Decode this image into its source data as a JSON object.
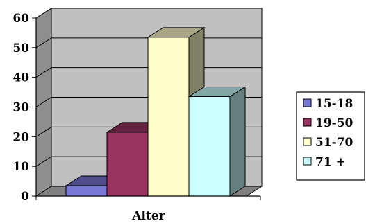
{
  "chart_data": {
    "type": "bar",
    "style": "3d-clustered-column",
    "xlabel": "Alter",
    "ylabel": "",
    "categories": [
      "Alter"
    ],
    "ylim": [
      0,
      60
    ],
    "yticks": [
      0,
      10,
      20,
      30,
      40,
      50,
      60
    ],
    "grid": true,
    "legend_position": "right",
    "series": [
      {
        "name": "15-18",
        "values": [
          3.5
        ],
        "color": "#7b79d8"
      },
      {
        "name": "19-50",
        "values": [
          21.5
        ],
        "color": "#99335f"
      },
      {
        "name": "51-70",
        "values": [
          53.5
        ],
        "color": "#ffffcc"
      },
      {
        "name": "71 +",
        "values": [
          33.5
        ],
        "color": "#ccffff"
      }
    ]
  },
  "colors": {
    "wall": "#c0c0c0",
    "side_wall": "#8e8e8e",
    "floor": "#808080",
    "gridline": "#000000"
  }
}
